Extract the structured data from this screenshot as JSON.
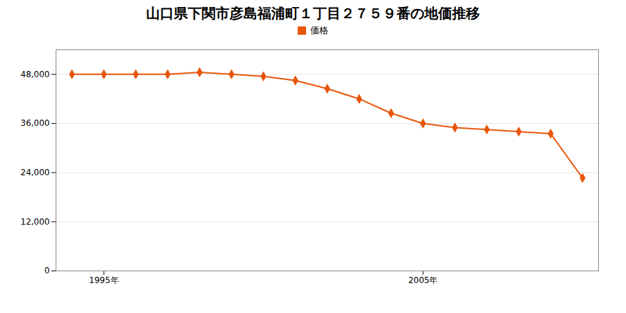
{
  "chart_data": {
    "type": "line",
    "title": "山口県下関市彦島福浦町１丁目２７５９番の地価推移",
    "x": [
      1994,
      1995,
      1996,
      1997,
      1998,
      1999,
      2000,
      2001,
      2002,
      2003,
      2004,
      2005,
      2006,
      2007,
      2008,
      2009,
      2010
    ],
    "series": [
      {
        "name": "価格",
        "color": "#e8560a",
        "marker": "diamond",
        "values": [
          48000,
          48000,
          48000,
          48000,
          48500,
          48000,
          47500,
          46500,
          44500,
          42000,
          38500,
          36000,
          35000,
          34500,
          34000,
          33500,
          22700
        ]
      }
    ],
    "xlim": [
      1993.5,
      2010.5
    ],
    "xticks": [
      {
        "value": 1995,
        "label": "1995年"
      },
      {
        "value": 2005,
        "label": "2005年"
      }
    ],
    "ylim": [
      0,
      54000
    ],
    "yticks": [
      0,
      {
        "value": 12000,
        "label": "12,000"
      },
      {
        "value": 24000,
        "label": "24,000"
      },
      {
        "value": 36000,
        "label": "36,000"
      },
      {
        "value": 48000,
        "label": "48,000"
      }
    ],
    "grid": true,
    "legend": "top"
  }
}
